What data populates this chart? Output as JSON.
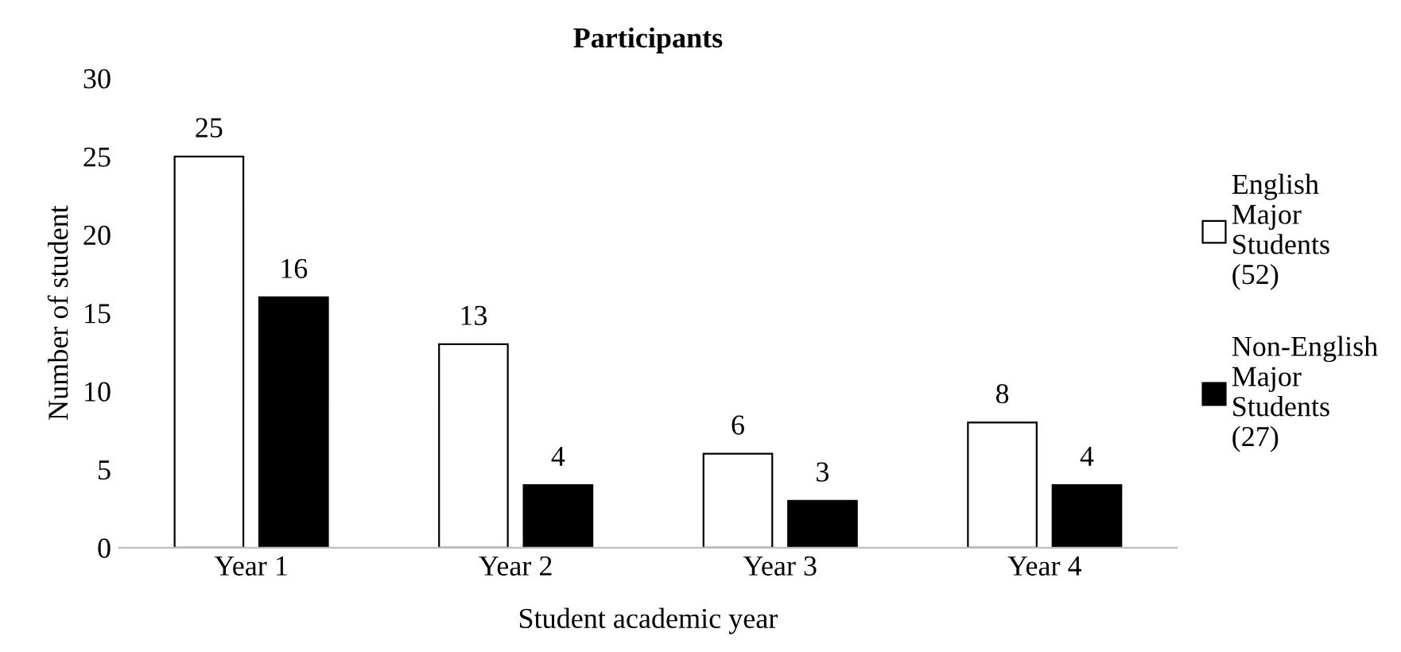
{
  "chart_data": {
    "type": "bar",
    "title": "Participants",
    "xlabel": "Student academic year",
    "ylabel": "Number of student",
    "categories": [
      "Year 1",
      "Year 2",
      "Year 3",
      "Year 4"
    ],
    "series": [
      {
        "name": "English Major Students (52)",
        "color": "#ffffff",
        "values": [
          25,
          13,
          6,
          8
        ]
      },
      {
        "name": "Non-English Major Students (27)",
        "color": "#000000",
        "values": [
          16,
          4,
          3,
          4
        ]
      }
    ],
    "ylim": [
      0,
      30
    ],
    "yticks": [
      0,
      5,
      10,
      15,
      20,
      25,
      30
    ],
    "grid": false,
    "legend": "right",
    "data_labels": true
  }
}
